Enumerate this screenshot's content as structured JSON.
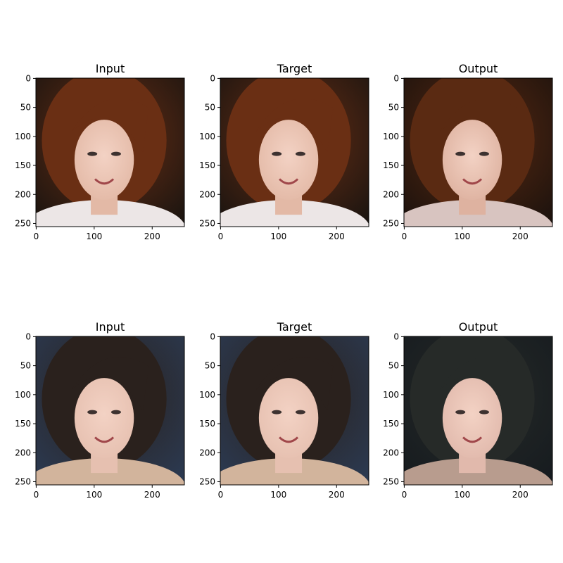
{
  "figure": {
    "panels": [
      {
        "title": "Input",
        "image": "portrait of a smiling girl with auburn hair",
        "tone": {
          "bg": "#1a1410",
          "hair": "#6a2f14",
          "skin": "#e3b9a6",
          "cloth": "#ece6e6"
        }
      },
      {
        "title": "Target",
        "image": "portrait of a smiling girl with auburn hair",
        "tone": {
          "bg": "#1a1410",
          "hair": "#6a2f14",
          "skin": "#e3b9a6",
          "cloth": "#ece6e6"
        }
      },
      {
        "title": "Output",
        "image": "generated portrait of a smiling girl with auburn hair",
        "tone": {
          "bg": "#1c120d",
          "hair": "#5a2a12",
          "skin": "#deb2a0",
          "cloth": "#d8c4c0"
        }
      },
      {
        "title": "Input",
        "image": "close-up portrait of a girl with dark hair",
        "tone": {
          "bg": "#2b3a52",
          "hair": "#2a211d",
          "skin": "#e6c0b0",
          "cloth": "#d2b49c"
        }
      },
      {
        "title": "Target",
        "image": "close-up portrait of a girl with dark hair",
        "tone": {
          "bg": "#2b3a52",
          "hair": "#2a211d",
          "skin": "#e6c0b0",
          "cloth": "#d2b49c"
        }
      },
      {
        "title": "Output",
        "image": "generated close-up portrait of a girl with dark hair",
        "tone": {
          "bg": "#161b1f",
          "hair": "#262a28",
          "skin": "#e1b9ac",
          "cloth": "#b89c8e"
        }
      }
    ]
  },
  "chart_data": {
    "type": "image_grid",
    "rows": 2,
    "cols": 3,
    "x_ticks": [
      0,
      100,
      200
    ],
    "y_ticks": [
      0,
      50,
      100,
      150,
      200,
      250
    ],
    "xlim": [
      -0.5,
      255.5
    ],
    "ylim": [
      255.5,
      -0.5
    ],
    "grid": false
  }
}
